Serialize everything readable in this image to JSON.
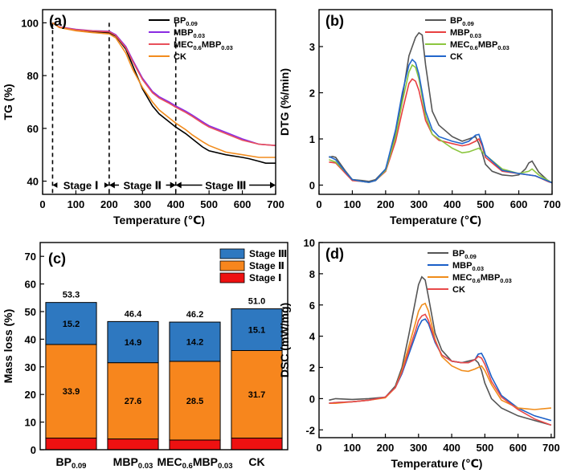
{
  "chart_data": [
    {
      "panel": "(a)",
      "type": "line",
      "xlabel": "Temperature (℃)",
      "ylabel": "TG (%)",
      "xlim": [
        0,
        700
      ],
      "ylim": [
        35,
        105
      ],
      "xticks": [
        0,
        100,
        200,
        300,
        400,
        500,
        600,
        700
      ],
      "yticks": [
        40,
        60,
        80,
        100
      ],
      "legend": "top-right",
      "stages": [
        {
          "label": "Stage Ⅰ",
          "from": 30,
          "to": 200
        },
        {
          "label": "Stage Ⅱ",
          "from": 200,
          "to": 400
        },
        {
          "label": "Stage Ⅲ",
          "from": 400,
          "to": 700
        }
      ],
      "series": [
        {
          "name": "BP",
          "sub": "0.09",
          "color": "#000000",
          "x": [
            30,
            50,
            100,
            150,
            200,
            220,
            250,
            270,
            300,
            330,
            350,
            380,
            400,
            430,
            450,
            480,
            500,
            550,
            600,
            620,
            650,
            670,
            700
          ],
          "y": [
            100,
            98.3,
            97.3,
            96.6,
            96.2,
            95,
            90,
            84,
            75,
            68.5,
            65.5,
            62.5,
            60.5,
            58,
            56,
            53,
            51.5,
            50,
            49,
            48.5,
            47.5,
            46.8,
            46.8
          ]
        },
        {
          "name": "MBP",
          "sub": "0.03",
          "color": "#8a2be2",
          "x": [
            30,
            50,
            100,
            150,
            200,
            220,
            250,
            270,
            300,
            330,
            350,
            380,
            400,
            430,
            450,
            480,
            500,
            550,
            600,
            650,
            700
          ],
          "y": [
            100,
            98.5,
            97.5,
            97,
            96.8,
            95.5,
            91,
            86,
            79,
            74,
            72,
            70,
            68.5,
            66.5,
            65,
            62.5,
            61,
            58.5,
            56,
            54,
            53.5
          ]
        },
        {
          "name": "MEC",
          "sub": "0.6",
          "name2": "MBP",
          "sub2": "0.03",
          "color": "#e8505b",
          "x": [
            30,
            50,
            100,
            150,
            200,
            220,
            250,
            270,
            300,
            330,
            350,
            380,
            400,
            430,
            450,
            480,
            500,
            550,
            600,
            650,
            700
          ],
          "y": [
            100,
            98.4,
            97.4,
            96.9,
            96.6,
            95.2,
            90.5,
            85.5,
            78.5,
            73.5,
            71.5,
            69.5,
            68,
            66,
            64.5,
            62,
            60.5,
            58,
            55.5,
            54,
            53.5
          ]
        },
        {
          "name": "CK",
          "sub": "",
          "color": "#f28c1e",
          "x": [
            30,
            50,
            100,
            150,
            200,
            220,
            250,
            270,
            300,
            330,
            350,
            380,
            400,
            430,
            450,
            480,
            500,
            550,
            600,
            650,
            700
          ],
          "y": [
            100,
            98.2,
            97,
            96.3,
            95.8,
            94.3,
            88.5,
            82.5,
            75.5,
            70,
            67,
            64,
            62,
            59.5,
            57.5,
            55,
            53.5,
            51,
            50,
            49,
            49
          ]
        }
      ]
    },
    {
      "panel": "(b)",
      "type": "line",
      "xlabel": "Temperature (℃)",
      "ylabel": "DTG (%/min)",
      "xlim": [
        0,
        700
      ],
      "ylim": [
        -0.2,
        3.8
      ],
      "xticks": [
        0,
        100,
        200,
        300,
        400,
        500,
        600,
        700
      ],
      "yticks": [
        0,
        1,
        2,
        3
      ],
      "legend": "top-right",
      "series": [
        {
          "name": "BP",
          "sub": "0.09",
          "color": "#555555",
          "x": [
            30,
            40,
            50,
            80,
            100,
            130,
            150,
            170,
            200,
            230,
            250,
            270,
            290,
            300,
            310,
            320,
            340,
            360,
            400,
            430,
            450,
            470,
            480,
            490,
            500,
            520,
            550,
            580,
            600,
            620,
            630,
            640,
            660,
            690,
            700
          ],
          "y": [
            0.6,
            0.62,
            0.6,
            0.3,
            0.12,
            0.1,
            0.08,
            0.12,
            0.35,
            1.1,
            1.9,
            2.8,
            3.2,
            3.3,
            3.25,
            2.6,
            1.6,
            1.3,
            1.05,
            0.95,
            1.0,
            1.05,
            0.9,
            0.7,
            0.45,
            0.3,
            0.22,
            0.2,
            0.22,
            0.35,
            0.48,
            0.52,
            0.28,
            0.08,
            0.05
          ]
        },
        {
          "name": "MBP",
          "sub": "0.03",
          "color": "#e84040",
          "x": [
            30,
            50,
            80,
            100,
            130,
            150,
            170,
            200,
            230,
            250,
            270,
            280,
            290,
            300,
            320,
            340,
            360,
            400,
            430,
            450,
            470,
            480,
            490,
            500,
            550,
            600,
            650,
            690,
            700
          ],
          "y": [
            0.5,
            0.48,
            0.25,
            0.1,
            0.08,
            0.06,
            0.1,
            0.3,
            0.95,
            1.6,
            2.2,
            2.3,
            2.25,
            2.05,
            1.4,
            1.1,
            0.97,
            0.9,
            0.85,
            0.88,
            0.95,
            1.0,
            0.85,
            0.6,
            0.3,
            0.25,
            0.2,
            0.07,
            0.05
          ]
        },
        {
          "name": "MEC",
          "sub": "0.6",
          "name2": "MBP",
          "sub2": "0.03",
          "color": "#8cc63f",
          "x": [
            30,
            50,
            80,
            100,
            130,
            150,
            170,
            200,
            230,
            250,
            270,
            280,
            290,
            300,
            320,
            340,
            360,
            400,
            430,
            450,
            480,
            500,
            550,
            600,
            630,
            640,
            660,
            700
          ],
          "y": [
            0.55,
            0.5,
            0.28,
            0.12,
            0.08,
            0.06,
            0.1,
            0.32,
            1.05,
            1.8,
            2.45,
            2.6,
            2.55,
            2.3,
            1.5,
            1.1,
            1.0,
            0.8,
            0.7,
            0.72,
            0.8,
            0.65,
            0.35,
            0.25,
            0.3,
            0.35,
            0.22,
            0.05
          ]
        },
        {
          "name": "CK",
          "sub": "",
          "color": "#2266cc",
          "x": [
            30,
            50,
            80,
            100,
            130,
            150,
            170,
            200,
            230,
            250,
            270,
            280,
            290,
            300,
            320,
            340,
            360,
            400,
            430,
            450,
            470,
            480,
            490,
            500,
            550,
            600,
            650,
            690,
            700
          ],
          "y": [
            0.62,
            0.55,
            0.28,
            0.12,
            0.08,
            0.06,
            0.1,
            0.35,
            1.2,
            2.0,
            2.6,
            2.72,
            2.65,
            2.4,
            1.6,
            1.2,
            1.05,
            0.95,
            0.9,
            0.95,
            1.08,
            1.1,
            0.9,
            0.65,
            0.32,
            0.25,
            0.2,
            0.08,
            0.05
          ]
        }
      ]
    },
    {
      "panel": "(c)",
      "type": "bar",
      "stacked": true,
      "ylabel": "Mass loss (%)",
      "ylim": [
        0,
        75
      ],
      "yticks": [
        0,
        10,
        20,
        30,
        40,
        50,
        60,
        70
      ],
      "legend": "top-right",
      "categories": [
        {
          "name": "BP",
          "sub": "0.09",
          "name2": "",
          "sub2": ""
        },
        {
          "name": "MBP",
          "sub": "0.03",
          "name2": "",
          "sub2": ""
        },
        {
          "name": "MEC",
          "sub": "0.6",
          "name2": "MBP",
          "sub2": "0.03"
        },
        {
          "name": "CK",
          "sub": "",
          "name2": "",
          "sub2": ""
        }
      ],
      "totals": [
        "53.3",
        "46.4",
        "46.2",
        "51.0"
      ],
      "series": [
        {
          "name": "Stage Ⅰ",
          "color": "#ee1111",
          "values": [
            4.2,
            3.9,
            3.5,
            4.2
          ],
          "labels": [
            "",
            "",
            "",
            ""
          ]
        },
        {
          "name": "Stage Ⅱ",
          "color": "#f7861d",
          "values": [
            33.9,
            27.6,
            28.5,
            31.7
          ],
          "labels": [
            "33.9",
            "27.6",
            "28.5",
            "31.7"
          ]
        },
        {
          "name": "Stage Ⅲ",
          "color": "#2e78c0",
          "values": [
            15.2,
            14.9,
            14.2,
            15.1
          ],
          "labels": [
            "15.2",
            "14.9",
            "14.2",
            "15.1"
          ]
        }
      ]
    },
    {
      "panel": "(d)",
      "type": "line",
      "xlabel": "Temperature (℃)",
      "ylabel": "DSC (mW/mg)",
      "xlim": [
        0,
        710
      ],
      "ylim": [
        -2.5,
        10
      ],
      "xticks": [
        0,
        100,
        200,
        300,
        400,
        500,
        600,
        700
      ],
      "yticks": [
        -2,
        0,
        2,
        4,
        6,
        8,
        10
      ],
      "legend": "top-right",
      "series": [
        {
          "name": "BP",
          "sub": "0.09",
          "color": "#555555",
          "x": [
            30,
            50,
            100,
            150,
            200,
            230,
            250,
            270,
            290,
            300,
            310,
            320,
            330,
            350,
            370,
            400,
            430,
            450,
            470,
            480,
            490,
            500,
            520,
            550,
            600,
            650,
            700
          ],
          "y": [
            -0.1,
            0,
            -0.05,
            0,
            0.1,
            0.8,
            2.0,
            4.0,
            6.2,
            7.3,
            7.8,
            7.6,
            6.5,
            4.2,
            3.1,
            2.4,
            2.3,
            2.4,
            2.5,
            2.3,
            1.8,
            1.0,
            0.0,
            -0.6,
            -1.1,
            -1.4,
            -1.7
          ]
        },
        {
          "name": "MBP",
          "sub": "0.03",
          "color": "#1a5fc8",
          "x": [
            30,
            50,
            100,
            150,
            200,
            230,
            250,
            270,
            290,
            300,
            310,
            320,
            330,
            350,
            370,
            400,
            430,
            450,
            470,
            480,
            490,
            500,
            520,
            550,
            600,
            650,
            700
          ],
          "y": [
            -0.3,
            -0.25,
            -0.2,
            -0.1,
            0.1,
            0.7,
            1.6,
            2.8,
            4.0,
            4.6,
            5.0,
            5.1,
            4.8,
            3.6,
            2.8,
            2.4,
            2.3,
            2.3,
            2.5,
            2.85,
            2.9,
            2.5,
            1.4,
            0.2,
            -0.6,
            -1.1,
            -1.4
          ]
        },
        {
          "name": "MEC",
          "sub": "0.6",
          "name2": "MBP",
          "sub2": "0.03",
          "color": "#f08c1a",
          "x": [
            30,
            50,
            100,
            150,
            200,
            230,
            250,
            270,
            290,
            300,
            310,
            320,
            330,
            350,
            370,
            400,
            430,
            450,
            470,
            490,
            500,
            520,
            550,
            600,
            650,
            700
          ],
          "y": [
            -0.3,
            -0.3,
            -0.2,
            -0.1,
            0.05,
            0.7,
            1.8,
            3.3,
            4.8,
            5.6,
            6.0,
            6.1,
            5.6,
            3.8,
            2.7,
            2.1,
            1.8,
            1.75,
            1.9,
            2.1,
            1.8,
            0.9,
            -0.1,
            -0.6,
            -0.7,
            -0.6
          ]
        },
        {
          "name": "CK",
          "sub": "",
          "color": "#e84a4a",
          "x": [
            30,
            50,
            100,
            150,
            200,
            230,
            250,
            270,
            290,
            300,
            310,
            320,
            330,
            350,
            370,
            400,
            430,
            450,
            470,
            480,
            490,
            500,
            520,
            550,
            600,
            650,
            700
          ],
          "y": [
            -0.3,
            -0.25,
            -0.2,
            -0.1,
            0.1,
            0.7,
            1.7,
            3.0,
            4.3,
            5.0,
            5.3,
            5.4,
            5.0,
            3.7,
            2.8,
            2.4,
            2.3,
            2.3,
            2.5,
            2.7,
            2.6,
            2.2,
            1.1,
            0.1,
            -0.7,
            -1.3,
            -1.7
          ]
        }
      ]
    }
  ]
}
